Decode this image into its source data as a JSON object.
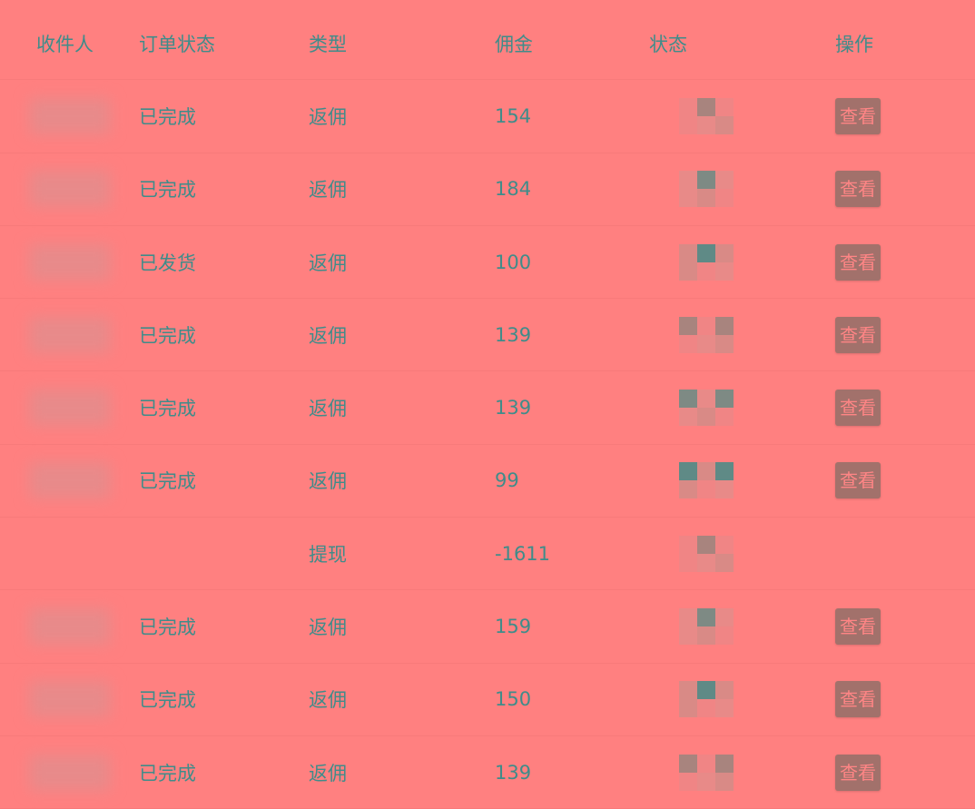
{
  "table": {
    "headers": [
      "收件人",
      "订单状态",
      "类型",
      "佣金",
      "状态",
      "操作"
    ],
    "view_label": "查看",
    "rows": [
      {
        "order_status": "已完成",
        "type": "返佣",
        "commission": "154",
        "has_view": true
      },
      {
        "order_status": "已完成",
        "type": "返佣",
        "commission": "184",
        "has_view": true
      },
      {
        "order_status": "已发货",
        "type": "返佣",
        "commission": "100",
        "has_view": true
      },
      {
        "order_status": "已完成",
        "type": "返佣",
        "commission": "139",
        "has_view": true
      },
      {
        "order_status": "已完成",
        "type": "返佣",
        "commission": "139",
        "has_view": true
      },
      {
        "order_status": "已完成",
        "type": "返佣",
        "commission": "99",
        "has_view": true
      },
      {
        "order_status": "",
        "type": "提现",
        "commission": "-1611",
        "has_view": false
      },
      {
        "order_status": "已完成",
        "type": "返佣",
        "commission": "159",
        "has_view": true
      },
      {
        "order_status": "已完成",
        "type": "返佣",
        "commission": "150",
        "has_view": true
      },
      {
        "order_status": "已完成",
        "type": "返佣",
        "commission": "139",
        "has_view": true
      }
    ]
  },
  "colors": {
    "background": "#ff8080",
    "text": "#3f8c8a",
    "button": "#a2716b"
  }
}
